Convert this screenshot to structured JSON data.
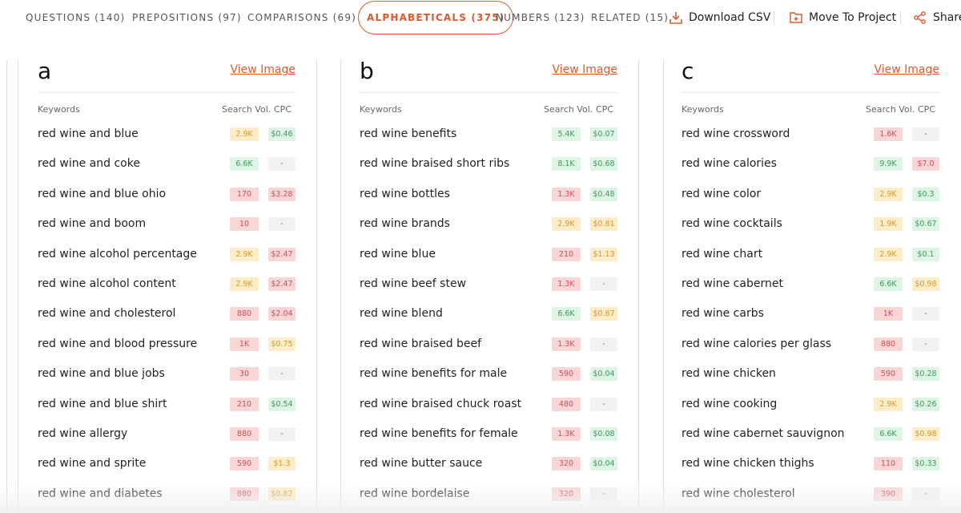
{
  "tabs": [
    "QUESTIONS (140)",
    "PREPOSITIONS (97)",
    "COMPARISONS (69)",
    "ALPHABETICALS (375)",
    "NUMBERS (123)",
    "RELATED (15)"
  ],
  "active_tab": 3,
  "actions": [
    "Download CSV",
    "Move To Project",
    "Share"
  ],
  "headers": [
    "Keywords",
    "Search Vol.",
    "CPC"
  ],
  "view_image": "View Image",
  "cards": [
    {
      "letter": "a",
      "rows": [
        [
          "red wine and blue",
          "2.9K",
          "yellow",
          "$0.46",
          "green"
        ],
        [
          "red wine and coke",
          "6.6K",
          "green",
          "-",
          "gray"
        ],
        [
          "red wine and blue ohio",
          "170",
          "red",
          "$3.28",
          "red"
        ],
        [
          "red wine and boom",
          "10",
          "red",
          "-",
          "gray"
        ],
        [
          "red wine alcohol percentage",
          "2.9K",
          "yellow",
          "$2.47",
          "red"
        ],
        [
          "red wine alcohol content",
          "2.9K",
          "yellow",
          "$2.47",
          "red"
        ],
        [
          "red wine and cholesterol",
          "880",
          "red",
          "$2.04",
          "red"
        ],
        [
          "red wine and blood pressure",
          "1K",
          "red",
          "$0.75",
          "yellow"
        ],
        [
          "red wine and blue jobs",
          "30",
          "red",
          "-",
          "gray"
        ],
        [
          "red wine and blue shirt",
          "210",
          "red",
          "$0.54",
          "green"
        ],
        [
          "red wine allergy",
          "880",
          "red",
          "-",
          "gray"
        ],
        [
          "red wine and sprite",
          "590",
          "red",
          "$1.3",
          "yellow"
        ],
        [
          "red wine and diabetes",
          "880",
          "red",
          "$0.82",
          "yellow"
        ]
      ]
    },
    {
      "letter": "b",
      "rows": [
        [
          "red wine benefits",
          "5.4K",
          "green",
          "$0.07",
          "green"
        ],
        [
          "red wine braised short ribs",
          "8.1K",
          "green",
          "$0.68",
          "green"
        ],
        [
          "red wine bottles",
          "1.3K",
          "red",
          "$0.48",
          "green"
        ],
        [
          "red wine brands",
          "2.9K",
          "yellow",
          "$0.81",
          "yellow"
        ],
        [
          "red wine blue",
          "210",
          "red",
          "$1.13",
          "yellow"
        ],
        [
          "red wine beef stew",
          "1.3K",
          "red",
          "-",
          "gray"
        ],
        [
          "red wine blend",
          "6.6K",
          "green",
          "$0.87",
          "yellow"
        ],
        [
          "red wine braised beef",
          "1.3K",
          "red",
          "-",
          "gray"
        ],
        [
          "red wine benefits for male",
          "590",
          "red",
          "$0.04",
          "green"
        ],
        [
          "red wine braised chuck roast",
          "480",
          "red",
          "-",
          "gray"
        ],
        [
          "red wine benefits for female",
          "1.3K",
          "red",
          "$0.08",
          "green"
        ],
        [
          "red wine butter sauce",
          "320",
          "red",
          "$0.04",
          "green"
        ],
        [
          "red wine bordelaise",
          "320",
          "red",
          "-",
          "gray"
        ]
      ]
    },
    {
      "letter": "c",
      "rows": [
        [
          "red wine crossword",
          "1.6K",
          "red",
          "-",
          "gray"
        ],
        [
          "red wine calories",
          "9.9K",
          "green",
          "$7.0",
          "red"
        ],
        [
          "red wine color",
          "2.9K",
          "yellow",
          "$0.3",
          "green"
        ],
        [
          "red wine cocktails",
          "1.9K",
          "yellow",
          "$0.67",
          "green"
        ],
        [
          "red wine chart",
          "2.9K",
          "yellow",
          "$0.1",
          "green"
        ],
        [
          "red wine cabernet",
          "6.6K",
          "green",
          "$0.98",
          "yellow"
        ],
        [
          "red wine carbs",
          "1K",
          "red",
          "-",
          "gray"
        ],
        [
          "red wine calories per glass",
          "880",
          "red",
          "-",
          "gray"
        ],
        [
          "red wine chicken",
          "590",
          "red",
          "$0.28",
          "green"
        ],
        [
          "red wine cooking",
          "2.9K",
          "yellow",
          "$0.26",
          "green"
        ],
        [
          "red wine cabernet sauvignon",
          "6.6K",
          "green",
          "$0.98",
          "yellow"
        ],
        [
          "red wine chicken thighs",
          "110",
          "red",
          "$0.33",
          "green"
        ],
        [
          "red wine cholesterol",
          "390",
          "red",
          "-",
          "gray"
        ]
      ]
    }
  ]
}
